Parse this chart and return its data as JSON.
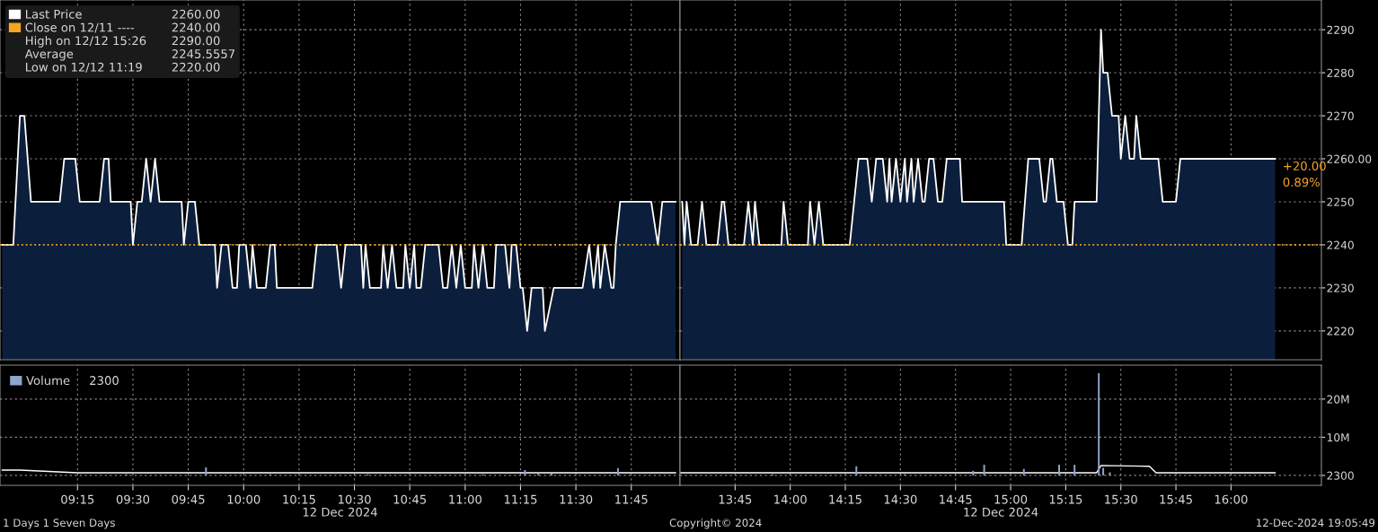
{
  "chart_data": [
    {
      "type": "area",
      "xlim": [
        8.9,
        11.97
      ],
      "ylim": [
        2213.3,
        2296.9
      ],
      "tick_labels": false,
      "grid": true,
      "legend": "top left",
      "xticks": [
        {
          "value": 9.25,
          "label": null
        },
        {
          "value": 9.5,
          "label": null
        },
        {
          "value": 9.75,
          "label": null
        },
        {
          "value": 10,
          "label": null
        },
        {
          "value": 10.25,
          "label": null
        },
        {
          "value": 10.5,
          "label": null
        },
        {
          "value": 10.75,
          "label": null
        },
        {
          "value": 11,
          "label": null
        },
        {
          "value": 11.25,
          "label": null
        },
        {
          "value": 11.5,
          "label": null
        },
        {
          "value": 11.75,
          "label": null
        }
      ],
      "yticks": [
        {
          "value": 2220,
          "label": null
        },
        {
          "value": 2230,
          "label": null
        },
        {
          "value": 2240,
          "label": null
        },
        {
          "value": 2250,
          "label": null
        },
        {
          "value": 2260,
          "label": null
        },
        {
          "value": 2270,
          "label": null
        },
        {
          "value": 2280,
          "label": null
        },
        {
          "value": 2290,
          "label": null
        }
      ],
      "ref_lines": [
        {
          "axis": "y",
          "value": 2240,
          "label": "Close on 12/11 ----",
          "color": "#f5a623",
          "line_style": "dotted"
        }
      ],
      "annotations": [
        "High on 12/12 15:26",
        "Average",
        "Low on 12/12 11:19",
        "2260.00",
        "2240.00",
        "2290.00",
        "2245.5557",
        "2220.00"
      ],
      "series": [
        {
          "name": "Last Price",
          "color": "#ffffff",
          "x": [
            8.91,
            8.96,
            8.99,
            9.01,
            9.04,
            9.17,
            9.19,
            9.24,
            9.26,
            9.35,
            9.37,
            9.39,
            9.4,
            9.49,
            9.5,
            9.52,
            9.54,
            9.56,
            9.58,
            9.6,
            9.62,
            9.72,
            9.73,
            9.75,
            9.78,
            9.8,
            9.87,
            9.88,
            9.9,
            9.93,
            9.95,
            9.97,
            9.98,
            10.01,
            10.03,
            10.04,
            10.06,
            10.1,
            10.12,
            10.14,
            10.15,
            10.31,
            10.33,
            10.42,
            10.44,
            10.46,
            10.53,
            10.54,
            10.55,
            10.57,
            10.62,
            10.63,
            10.65,
            10.67,
            10.69,
            10.72,
            10.73,
            10.75,
            10.77,
            10.78,
            10.8,
            10.82,
            10.88,
            10.9,
            10.92,
            10.94,
            10.96,
            10.98,
            11.0,
            11.03,
            11.04,
            11.06,
            11.08,
            11.1,
            11.13,
            11.14,
            11.18,
            11.2,
            11.21,
            11.23,
            11.25,
            11.26,
            11.28,
            11.3,
            11.35,
            11.36,
            11.4,
            11.53,
            11.56,
            11.58,
            11.6,
            11.61,
            11.63,
            11.66,
            11.67,
            11.68,
            11.7,
            11.84,
            11.87,
            11.89,
            11.95
          ],
          "values": [
            2240,
            2240,
            2270,
            2270,
            2250,
            2250,
            2260,
            2260,
            2250,
            2250,
            2260,
            2260,
            2250,
            2250,
            2240,
            2250,
            2250,
            2260,
            2250,
            2260,
            2250,
            2250,
            2240,
            2250,
            2250,
            2240,
            2240,
            2230,
            2240,
            2240,
            2230,
            2230,
            2240,
            2240,
            2230,
            2240,
            2230,
            2230,
            2240,
            2240,
            2230,
            2230,
            2240,
            2240,
            2230,
            2240,
            2240,
            2230,
            2240,
            2230,
            2230,
            2240,
            2230,
            2240,
            2230,
            2230,
            2240,
            2230,
            2240,
            2230,
            2230,
            2240,
            2240,
            2230,
            2230,
            2240,
            2230,
            2240,
            2230,
            2230,
            2240,
            2230,
            2240,
            2230,
            2230,
            2240,
            2240,
            2230,
            2240,
            2240,
            2230,
            2230,
            2220,
            2230,
            2230,
            2220,
            2230,
            2230,
            2240,
            2230,
            2240,
            2230,
            2240,
            2230,
            2230,
            2240,
            2250,
            2250,
            2240,
            2250,
            2250
          ]
        }
      ]
    },
    {
      "type": "area",
      "xlim": [
        13.5,
        16.41
      ],
      "ylim": [
        2213.3,
        2296.9
      ],
      "tick_labels": "y",
      "grid": true,
      "xticks": [
        {
          "value": 13.75,
          "label": null
        },
        {
          "value": 14,
          "label": null
        },
        {
          "value": 14.25,
          "label": null
        },
        {
          "value": 14.5,
          "label": null
        },
        {
          "value": 14.75,
          "label": null
        },
        {
          "value": 15,
          "label": null
        },
        {
          "value": 15.25,
          "label": null
        },
        {
          "value": 15.5,
          "label": null
        },
        {
          "value": 15.75,
          "label": null
        },
        {
          "value": 16,
          "label": null
        }
      ],
      "yticks": [
        2220,
        2230,
        2240,
        2250,
        {
          "value": 2260,
          "label": "2260.00"
        },
        2270,
        2280,
        2290
      ],
      "ref_lines": [
        {
          "axis": "y",
          "value": 2240,
          "color": "#f5a623",
          "line_style": "dotted"
        }
      ],
      "annotations": [
        "+20.00",
        "0.89%"
      ],
      "series": [
        {
          "color": "#ffffff",
          "x": [
            13.51,
            13.52,
            13.53,
            13.55,
            13.58,
            13.6,
            13.62,
            13.67,
            13.69,
            13.7,
            13.72,
            13.79,
            13.81,
            13.83,
            13.84,
            13.86,
            13.96,
            13.97,
            13.99,
            14.08,
            14.09,
            14.11,
            14.13,
            14.15,
            14.27,
            14.31,
            14.35,
            14.37,
            14.39,
            14.42,
            14.44,
            14.45,
            14.46,
            14.48,
            14.5,
            14.52,
            14.53,
            14.55,
            14.56,
            14.58,
            14.6,
            14.61,
            14.63,
            14.65,
            14.67,
            14.69,
            14.71,
            14.77,
            14.78,
            14.97,
            14.98,
            15.05,
            15.08,
            15.13,
            15.15,
            15.16,
            15.18,
            15.19,
            15.21,
            15.24,
            15.26,
            15.28,
            15.29,
            15.39,
            15.41,
            15.42,
            15.44,
            15.46,
            15.49,
            15.5,
            15.52,
            15.54,
            15.56,
            15.57,
            15.59,
            15.67,
            15.69,
            15.75,
            15.77,
            16.2
          ],
          "values": [
            2250,
            2240,
            2250,
            2240,
            2240,
            2250,
            2240,
            2240,
            2250,
            2250,
            2240,
            2240,
            2250,
            2240,
            2250,
            2240,
            2240,
            2250,
            2240,
            2240,
            2250,
            2240,
            2250,
            2240,
            2240,
            2260,
            2260,
            2250,
            2260,
            2260,
            2250,
            2260,
            2250,
            2260,
            2250,
            2260,
            2250,
            2260,
            2250,
            2260,
            2250,
            2250,
            2260,
            2260,
            2250,
            2250,
            2260,
            2260,
            2250,
            2250,
            2240,
            2240,
            2260,
            2260,
            2250,
            2250,
            2260,
            2260,
            2250,
            2250,
            2240,
            2240,
            2250,
            2250,
            2290,
            2280,
            2280,
            2270,
            2270,
            2260,
            2270,
            2260,
            2260,
            2270,
            2260,
            2260,
            2250,
            2250,
            2260,
            2260
          ]
        }
      ]
    },
    {
      "type": "bar",
      "xlim": [
        8.9,
        11.97
      ],
      "ylim": [
        -2600000,
        28900000
      ],
      "tick_labels": "x",
      "grid": true,
      "legend": "top left",
      "xlabel": "12 Dec 2024",
      "xticks": [
        {
          "value": 9.25,
          "label": "09:15"
        },
        {
          "value": 9.5,
          "label": "09:30"
        },
        {
          "value": 9.75,
          "label": "09:45"
        },
        {
          "value": 10,
          "label": "10:00"
        },
        {
          "value": 10.25,
          "label": "10:15"
        },
        {
          "value": 10.5,
          "label": "10:30"
        },
        {
          "value": 10.75,
          "label": "10:45"
        },
        {
          "value": 11,
          "label": "11:00"
        },
        {
          "value": 11.25,
          "label": "11:15"
        },
        {
          "value": 11.5,
          "label": "11:30"
        },
        {
          "value": 11.75,
          "label": "11:45"
        }
      ],
      "yticks": [
        {
          "value": 2300,
          "label": null
        },
        {
          "value": 10000000,
          "label": null
        },
        {
          "value": 20000000,
          "label": null
        }
      ],
      "annotations": [
        "2300"
      ],
      "series": [
        {
          "name": "Volume",
          "color": "#8fa5cc",
          "x": [
            9.47,
            9.83,
            10.12,
            10.56,
            11.08,
            11.27,
            11.33,
            11.39,
            11.69
          ],
          "values": [
            300000,
            2100000,
            300000,
            300000,
            300000,
            1400000,
            400000,
            500000,
            1900000
          ]
        },
        {
          "type": "line",
          "color": "#ffffff",
          "x": [
            8.91,
            8.99,
            9.25,
            11.95
          ],
          "values": [
            1400000,
            1400000,
            700000,
            700000
          ]
        }
      ]
    },
    {
      "type": "bar",
      "xlim": [
        13.5,
        16.41
      ],
      "ylim": [
        -2600000,
        28900000
      ],
      "grid": true,
      "xlabel": "12 Dec 2024",
      "xticks": [
        {
          "value": 13.75,
          "label": "13:45"
        },
        {
          "value": 14,
          "label": "14:00"
        },
        {
          "value": 14.25,
          "label": "14:15"
        },
        {
          "value": 14.5,
          "label": "14:30"
        },
        {
          "value": 14.75,
          "label": "14:45"
        },
        {
          "value": 15,
          "label": "15:00"
        },
        {
          "value": 15.25,
          "label": "15:15"
        },
        {
          "value": 15.5,
          "label": "15:30"
        },
        {
          "value": 15.75,
          "label": "15:45"
        },
        {
          "value": 16,
          "label": "16:00"
        }
      ],
      "yticks": [
        2300,
        {
          "value": 10000000,
          "label": "10M"
        },
        {
          "value": 20000000,
          "label": "20M"
        }
      ],
      "annotations": [
        "1 Days 1 Seven Days",
        "Copyright© 2024",
        "12-Dec-2024 19:05:49"
      ],
      "series": [
        {
          "color": "#8fa5cc",
          "x": [
            13.92,
            14.3,
            14.52,
            14.83,
            14.88,
            15.06,
            15.22,
            15.29,
            15.4,
            15.42,
            15.45
          ],
          "values": [
            300000,
            2400000,
            300000,
            1200000,
            2800000,
            1700000,
            2800000,
            2800000,
            26800000,
            2000000,
            800000
          ]
        },
        {
          "type": "line",
          "color": "#ffffff",
          "x": [
            13.5,
            15.39,
            15.41,
            15.63,
            15.66,
            16.2
          ],
          "values": [
            700000,
            700000,
            2600000,
            2400000,
            700000,
            700000
          ]
        }
      ]
    }
  ]
}
